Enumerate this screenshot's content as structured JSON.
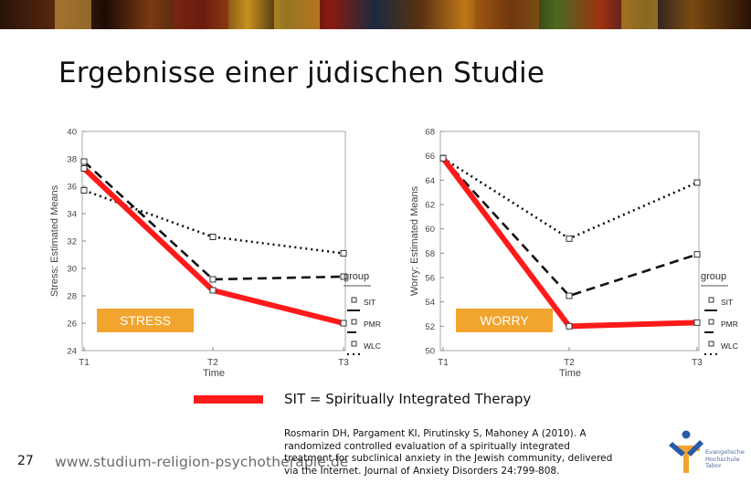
{
  "slide": {
    "title": "Ergebnisse einer jüdischen Studie",
    "number": "27",
    "website": "www.studium-religion-psychotherapie.de",
    "legend_text": "SIT = Spiritually Integrated Therapy",
    "citation": "Rosmarin DH, Pargament KI, Pirutinsky S, Mahoney A (2010). A randomized controlled evaluation of a spiritually integrated treatment for subclinical anxiety in the Jewish community, delivered via the Internet. Journal of Anxiety Disorders 24:799-808.",
    "logo_text": [
      "Evangelische",
      "Hochschule",
      "Tabor"
    ],
    "colors": {
      "highlight": "#ff1a1a",
      "label_box": "#f1a52f"
    }
  },
  "chart_data": [
    {
      "type": "line",
      "label_box": "STRESS",
      "ylabel": "Stress: Estimated Means",
      "xlabel": "Time",
      "categories": [
        "T1",
        "T2",
        "T3"
      ],
      "ylim": [
        24,
        40
      ],
      "yticks": [
        "40",
        "38",
        "36",
        "34",
        "32",
        "30",
        "28",
        "26",
        "24"
      ],
      "ytick_values": [
        40,
        38,
        36,
        34,
        32,
        30,
        28,
        26,
        24
      ],
      "legend_title": "group",
      "series": [
        {
          "name": "SIT",
          "values": [
            37.3,
            28.4,
            26.0
          ],
          "style": "solid"
        },
        {
          "name": "PMR",
          "values": [
            37.8,
            29.2,
            29.4
          ],
          "style": "dashed"
        },
        {
          "name": "WLC",
          "values": [
            35.7,
            32.3,
            31.1
          ],
          "style": "dotted"
        }
      ]
    },
    {
      "type": "line",
      "label_box": "WORRY",
      "ylabel": "Worry: Estimated Means",
      "xlabel": "Time",
      "categories": [
        "T1",
        "T2",
        "T3"
      ],
      "ylim": [
        50,
        68
      ],
      "yticks": [
        "68",
        "66",
        "64",
        "62",
        "60",
        "58",
        "56",
        "54",
        "52",
        "50"
      ],
      "ytick_values": [
        68,
        66,
        64,
        62,
        60,
        58,
        56,
        54,
        52,
        50
      ],
      "legend_title": "group",
      "series": [
        {
          "name": "SIT",
          "values": [
            65.8,
            52.0,
            52.3
          ],
          "style": "solid"
        },
        {
          "name": "PMR",
          "values": [
            65.8,
            54.5,
            57.9
          ],
          "style": "dashed"
        },
        {
          "name": "WLC",
          "values": [
            65.8,
            59.2,
            63.8
          ],
          "style": "dotted"
        }
      ]
    }
  ]
}
